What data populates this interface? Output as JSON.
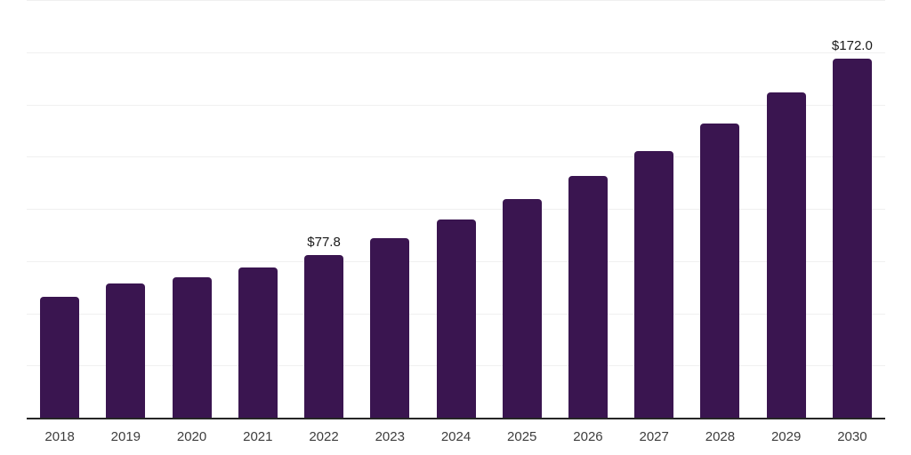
{
  "chart_data": {
    "type": "bar",
    "title": "",
    "xlabel": "",
    "ylabel": "",
    "categories": [
      "2018",
      "2019",
      "2020",
      "2021",
      "2022",
      "2023",
      "2024",
      "2025",
      "2026",
      "2027",
      "2028",
      "2029",
      "2030"
    ],
    "values": [
      57.7,
      64.1,
      67.3,
      71.9,
      77.8,
      85.9,
      94.8,
      104.7,
      115.6,
      127.6,
      140.9,
      155.6,
      172.0
    ],
    "point_labels": {
      "2022": "$77.8",
      "2030": "$172.0"
    },
    "ylim": [
      0,
      200
    ],
    "gridline_interval": 25,
    "grid": "horizontal-only",
    "legend_position": "none",
    "y_tick_labels_visible": false,
    "colors": {
      "bar": "#3a1550",
      "gridline": "#f0f0f0",
      "axis": "#262626",
      "x_tick_label": "#3d3d3d",
      "value_label": "#1a1a1a",
      "background": "#ffffff"
    }
  }
}
